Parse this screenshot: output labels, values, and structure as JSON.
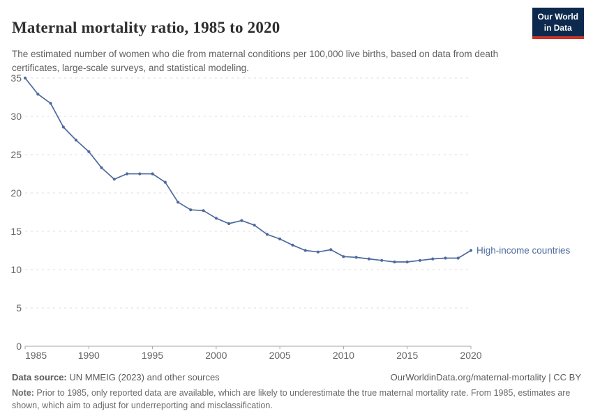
{
  "header": {
    "title": "Maternal mortality ratio, 1985 to 2020",
    "subtitle": "The estimated number of women who die from maternal conditions per 100,000 live births, based on data from death certificates, large-scale surveys, and statistical modeling.",
    "logo_line1": "Our World",
    "logo_line2": "in Data",
    "logo_bg_color": "#0d2a4e",
    "logo_stripe_color": "#ca3327"
  },
  "chart_data": {
    "type": "line",
    "title": "Maternal mortality ratio, 1985 to 2020",
    "xlabel": "",
    "ylabel": "",
    "xlim": [
      1985,
      2020
    ],
    "ylim": [
      0,
      35
    ],
    "x_ticks": [
      1985,
      1990,
      1995,
      2000,
      2005,
      2010,
      2015,
      2020
    ],
    "y_ticks": [
      0,
      5,
      10,
      15,
      20,
      25,
      30,
      35
    ],
    "grid": "horizontal-dashed",
    "legend_position": "end-of-line-label",
    "line_color": "#4c6a9d",
    "grid_color": "#dcdcdc",
    "axis_color": "#a5a5a5",
    "tick_label_color": "#666666",
    "x": [
      1985,
      1986,
      1987,
      1988,
      1989,
      1990,
      1991,
      1992,
      1993,
      1994,
      1995,
      1996,
      1997,
      1998,
      1999,
      2000,
      2001,
      2002,
      2003,
      2004,
      2005,
      2006,
      2007,
      2008,
      2009,
      2010,
      2011,
      2012,
      2013,
      2014,
      2015,
      2016,
      2017,
      2018,
      2019,
      2020
    ],
    "series": [
      {
        "name": "High-income countries",
        "color": "#4c6a9d",
        "values": [
          35.0,
          32.9,
          31.7,
          28.6,
          26.9,
          25.4,
          23.3,
          21.8,
          22.5,
          22.5,
          22.5,
          21.4,
          18.8,
          17.8,
          17.7,
          16.7,
          16.0,
          16.4,
          15.8,
          14.6,
          14.0,
          13.2,
          12.5,
          12.3,
          12.6,
          11.7,
          11.6,
          11.4,
          11.2,
          11.0,
          11.0,
          11.2,
          11.4,
          11.5,
          11.5,
          12.5
        ]
      }
    ]
  },
  "footer": {
    "source_label": "Data source:",
    "source_text": " UN MMEIG (2023) and other sources",
    "attribution": "OurWorldinData.org/maternal-mortality | CC BY",
    "note_label": "Note:",
    "note_text": " Prior to 1985, only reported data are available, which are likely to underestimate the true maternal mortality rate. From 1985, estimates are shown, which aim to adjust for underreporting and misclassification."
  }
}
